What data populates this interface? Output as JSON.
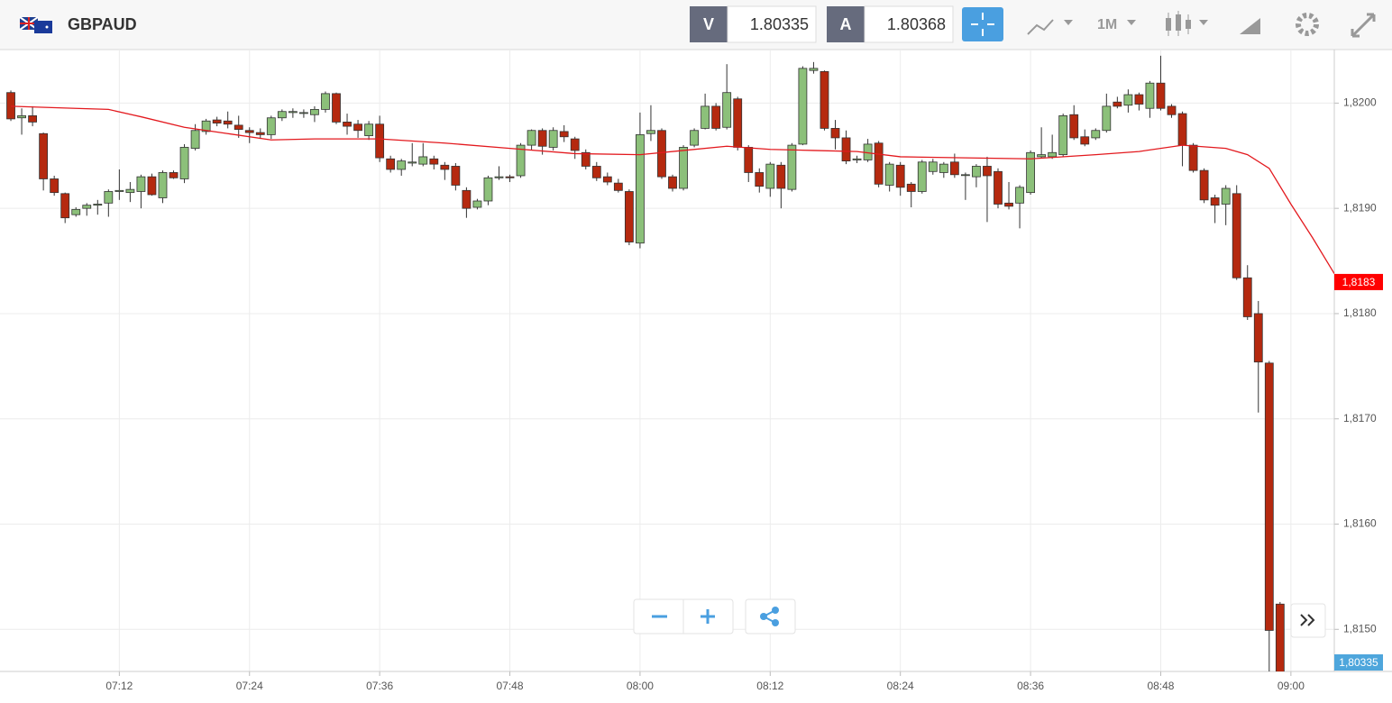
{
  "header": {
    "symbol": "GBPAUD",
    "bid_label": "V",
    "bid": 1.80335,
    "ask_label": "A",
    "ask": 1.80368,
    "timeframe": "1M"
  },
  "chart_data": {
    "type": "candlestick",
    "categories": [
      "07:02",
      "07:03",
      "07:04",
      "07:05",
      "07:06",
      "07:07",
      "07:08",
      "07:09",
      "07:10",
      "07:11",
      "07:12",
      "07:13",
      "07:14",
      "07:15",
      "07:16",
      "07:17",
      "07:18",
      "07:19",
      "07:20",
      "07:21",
      "07:22",
      "07:23",
      "07:24",
      "07:25",
      "07:26",
      "07:27",
      "07:28",
      "07:29",
      "07:30",
      "07:31",
      "07:32",
      "07:33",
      "07:34",
      "07:35",
      "07:36",
      "07:37",
      "07:38",
      "07:39",
      "07:40",
      "07:41",
      "07:42",
      "07:43",
      "07:44",
      "07:45",
      "07:46",
      "07:47",
      "07:48",
      "07:49",
      "07:50",
      "07:51",
      "07:52",
      "07:53",
      "07:54",
      "07:55",
      "07:56",
      "07:57",
      "07:58",
      "07:59",
      "08:00",
      "08:01",
      "08:02",
      "08:03",
      "08:04",
      "08:05",
      "08:06",
      "08:07",
      "08:08",
      "08:09",
      "08:10",
      "08:11",
      "08:12",
      "08:13",
      "08:14",
      "08:15",
      "08:16",
      "08:17",
      "08:18",
      "08:19",
      "08:20",
      "08:21",
      "08:22",
      "08:23",
      "08:24",
      "08:25",
      "08:26",
      "08:27",
      "08:28",
      "08:29",
      "08:30",
      "08:31",
      "08:32",
      "08:33",
      "08:34",
      "08:35",
      "08:36",
      "08:37",
      "08:38",
      "08:39",
      "08:40",
      "08:41",
      "08:42",
      "08:43",
      "08:44",
      "08:45",
      "08:46",
      "08:47",
      "08:48",
      "08:49",
      "08:50",
      "08:51",
      "08:52",
      "08:53",
      "08:54",
      "08:55",
      "08:56",
      "08:57",
      "08:58",
      "08:59"
    ],
    "open": [
      1.8201,
      1.81986,
      1.81988,
      1.81971,
      1.81928,
      1.81914,
      1.81894,
      1.819,
      1.81903,
      1.81905,
      1.81916,
      1.81915,
      1.81916,
      1.8193,
      1.8191,
      1.81934,
      1.81928,
      1.81957,
      1.81973,
      1.81984,
      1.81983,
      1.81979,
      1.81974,
      1.81972,
      1.8197,
      1.81986,
      1.81991,
      1.81991,
      1.81989,
      1.81994,
      1.82009,
      1.81982,
      1.8198,
      1.81969,
      1.8198,
      1.81947,
      1.81937,
      1.81943,
      1.81942,
      1.81947,
      1.81941,
      1.8194,
      1.81917,
      1.81901,
      1.81907,
      1.81929,
      1.8193,
      1.81931,
      1.8196,
      1.81974,
      1.81958,
      1.81973,
      1.81966,
      1.81953,
      1.8194,
      1.8193,
      1.81924,
      1.81916,
      1.81867,
      1.81971,
      1.81974,
      1.8193,
      1.81919,
      1.8196,
      1.81976,
      1.81997,
      1.81977,
      1.82004,
      1.81958,
      1.81934,
      1.81919,
      1.81941,
      1.81918,
      1.81961,
      1.82031,
      1.8203,
      1.81976,
      1.81967,
      1.81946,
      1.81946,
      1.81962,
      1.81922,
      1.81941,
      1.81923,
      1.81916,
      1.81935,
      1.81934,
      1.81944,
      1.81932,
      1.8193,
      1.8194,
      1.81935,
      1.81905,
      1.81905,
      1.81915,
      1.81949,
      1.81949,
      1.81951,
      1.81989,
      1.81968,
      1.81967,
      1.81974,
      1.82001,
      1.81998,
      1.82008,
      1.81995,
      1.82019,
      1.81997,
      1.8199,
      1.8196,
      1.81936,
      1.8191,
      1.81904,
      1.81914,
      1.81834,
      1.818,
      1.81753,
      1.81524
    ],
    "high": [
      1.82012,
      1.81995,
      1.81997,
      1.81972,
      1.81931,
      1.81915,
      1.81901,
      1.81905,
      1.81908,
      1.81918,
      1.81937,
      1.81925,
      1.81932,
      1.81933,
      1.81936,
      1.81936,
      1.81961,
      1.8198,
      1.81985,
      1.81987,
      1.81992,
      1.81988,
      1.81977,
      1.81976,
      1.81988,
      1.81994,
      1.81995,
      1.81994,
      1.81997,
      1.82011,
      1.8201,
      1.8199,
      1.81984,
      1.81983,
      1.81988,
      1.8195,
      1.81947,
      1.81962,
      1.81962,
      1.8195,
      1.81944,
      1.81943,
      1.8192,
      1.81909,
      1.81931,
      1.8194,
      1.81932,
      1.81962,
      1.81975,
      1.81976,
      1.81977,
      1.81979,
      1.81968,
      1.81956,
      1.81944,
      1.81934,
      1.81928,
      1.81918,
      1.81991,
      1.81998,
      1.81976,
      1.81932,
      1.8196,
      1.81976,
      1.82009,
      1.82,
      1.82037,
      1.82006,
      1.8196,
      1.81938,
      1.81944,
      1.81944,
      1.81962,
      1.82035,
      1.82039,
      1.82031,
      1.81984,
      1.81974,
      1.8195,
      1.81966,
      1.81964,
      1.81944,
      1.81944,
      1.81925,
      1.81946,
      1.81947,
      1.81944,
      1.81952,
      1.81934,
      1.81942,
      1.81949,
      1.81938,
      1.81925,
      1.81922,
      1.81955,
      1.81977,
      1.8197,
      1.8199,
      1.81998,
      1.81975,
      1.81976,
      1.82009,
      1.82006,
      1.82013,
      1.8201,
      1.82021,
      1.82045,
      1.81999,
      1.81992,
      1.81962,
      1.81938,
      1.81913,
      1.81922,
      1.81922,
      1.81846,
      1.81812,
      1.81755,
      1.81526
    ],
    "low": [
      1.81983,
      1.8197,
      1.81978,
      1.81917,
      1.81912,
      1.81886,
      1.81892,
      1.81893,
      1.81894,
      1.81892,
      1.81908,
      1.81906,
      1.819,
      1.81912,
      1.81905,
      1.81928,
      1.81924,
      1.81955,
      1.8197,
      1.81978,
      1.81976,
      1.81967,
      1.81962,
      1.81966,
      1.81966,
      1.81983,
      1.81986,
      1.81986,
      1.81982,
      1.81991,
      1.8198,
      1.8197,
      1.81967,
      1.81965,
      1.81944,
      1.81934,
      1.81931,
      1.8194,
      1.8194,
      1.81937,
      1.81927,
      1.81917,
      1.81891,
      1.81899,
      1.81903,
      1.81927,
      1.81925,
      1.81929,
      1.81955,
      1.81951,
      1.81955,
      1.81963,
      1.81947,
      1.81937,
      1.81926,
      1.81922,
      1.81915,
      1.81865,
      1.81862,
      1.81964,
      1.81928,
      1.81916,
      1.81917,
      1.81958,
      1.81975,
      1.81974,
      1.81975,
      1.81955,
      1.81925,
      1.81915,
      1.81911,
      1.819,
      1.81916,
      1.8196,
      1.82028,
      1.81974,
      1.81956,
      1.81942,
      1.81943,
      1.81944,
      1.8192,
      1.81916,
      1.81912,
      1.81901,
      1.81914,
      1.81932,
      1.81929,
      1.81929,
      1.81908,
      1.8192,
      1.81887,
      1.819,
      1.81899,
      1.81881,
      1.81913,
      1.81948,
      1.81947,
      1.81949,
      1.81965,
      1.81959,
      1.81965,
      1.81972,
      1.81995,
      1.81991,
      1.81993,
      1.81986,
      1.81993,
      1.81986,
      1.8194,
      1.81934,
      1.81905,
      1.81886,
      1.81884,
      1.81832,
      1.81794,
      1.81706,
      1.81459,
      1.81459
    ],
    "close": [
      1.81985,
      1.81988,
      1.81982,
      1.81928,
      1.81915,
      1.81891,
      1.81899,
      1.81903,
      1.81904,
      1.81916,
      1.81917,
      1.81918,
      1.8193,
      1.81913,
      1.81934,
      1.81929,
      1.81958,
      1.81974,
      1.81983,
      1.81981,
      1.8198,
      1.81975,
      1.81972,
      1.8197,
      1.81986,
      1.81992,
      1.81992,
      1.81991,
      1.81994,
      1.82009,
      1.81982,
      1.81978,
      1.81974,
      1.8198,
      1.81948,
      1.81937,
      1.81945,
      1.81944,
      1.81949,
      1.81942,
      1.81937,
      1.81922,
      1.819,
      1.81907,
      1.81929,
      1.8193,
      1.81929,
      1.8196,
      1.81974,
      1.81959,
      1.81974,
      1.81968,
      1.81955,
      1.8194,
      1.81929,
      1.81925,
      1.81917,
      1.81868,
      1.8197,
      1.81974,
      1.8193,
      1.81919,
      1.81958,
      1.81974,
      1.81997,
      1.81976,
      1.8201,
      1.81958,
      1.81934,
      1.81921,
      1.81942,
      1.81919,
      1.8196,
      1.82033,
      1.82033,
      1.81976,
      1.81967,
      1.81945,
      1.81947,
      1.81961,
      1.81923,
      1.81942,
      1.8192,
      1.81916,
      1.81944,
      1.81944,
      1.81942,
      1.81932,
      1.81932,
      1.8194,
      1.81931,
      1.81904,
      1.81902,
      1.8192,
      1.81953,
      1.81951,
      1.81953,
      1.81988,
      1.81967,
      1.81961,
      1.81974,
      1.81997,
      1.81997,
      1.82008,
      1.81999,
      1.82019,
      1.81995,
      1.81989,
      1.8196,
      1.81936,
      1.81908,
      1.81903,
      1.81919,
      1.81834,
      1.81797,
      1.81754,
      1.81499,
      1.81459
    ],
    "up_color": "#8cc07a",
    "down_color": "#b5290f",
    "moving_average": {
      "color": "#e3191e",
      "x": [
        "07:02",
        "07:08",
        "07:11",
        "07:14",
        "07:18",
        "07:22",
        "07:26",
        "07:30",
        "07:36",
        "07:42",
        "07:48",
        "07:54",
        "08:00",
        "08:04",
        "08:08",
        "08:12",
        "08:16",
        "08:20",
        "08:24",
        "08:30",
        "08:36",
        "08:42",
        "08:46",
        "08:50",
        "08:54",
        "08:56",
        "08:58",
        "09:00",
        "09:02",
        "09:04"
      ],
      "values": [
        1.81997,
        1.81995,
        1.81994,
        1.81987,
        1.81977,
        1.81971,
        1.81965,
        1.81966,
        1.81966,
        1.81962,
        1.81957,
        1.81952,
        1.81951,
        1.81955,
        1.81959,
        1.81956,
        1.81955,
        1.81954,
        1.81949,
        1.81948,
        1.81947,
        1.81951,
        1.81954,
        1.8196,
        1.81957,
        1.81951,
        1.81938,
        1.81904,
        1.81872,
        1.81838
      ]
    },
    "price_tags": [
      {
        "value": 1.8183,
        "label": "1,8183",
        "color": "#ff0000"
      },
      {
        "value": 1.80335,
        "label": "1,80335",
        "color": "#4ea6dc"
      }
    ],
    "xlim": [
      "07:01",
      "09:04"
    ],
    "xticks": [
      "07:12",
      "07:24",
      "07:36",
      "07:48",
      "08:00",
      "08:12",
      "08:24",
      "08:36",
      "08:48",
      "09:00"
    ],
    "ylim": [
      1.8146,
      1.8205
    ],
    "yticks": [
      {
        "value": 1.815,
        "label": "1,8150"
      },
      {
        "value": 1.816,
        "label": "1,8160"
      },
      {
        "value": 1.817,
        "label": "1,8170"
      },
      {
        "value": 1.818,
        "label": "1,8180"
      },
      {
        "value": 1.819,
        "label": "1,8190"
      },
      {
        "value": 1.82,
        "label": "1,8200"
      }
    ],
    "grid": true
  }
}
